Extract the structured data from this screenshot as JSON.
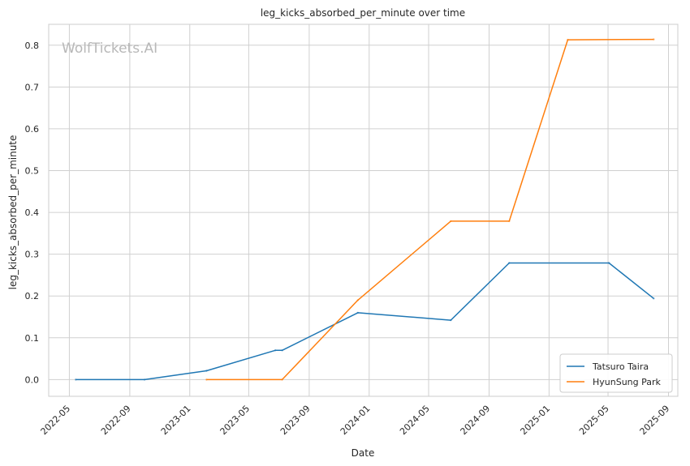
{
  "chart_data": {
    "type": "line",
    "title": "leg_kicks_absorbed_per_minute over time",
    "xlabel": "Date",
    "ylabel": "leg_kicks_absorbed_per_minute",
    "watermark": "WolfTickets.AI",
    "grid": true,
    "legend_position": "bottom-right",
    "x_ticks": [
      "2022-05",
      "2022-09",
      "2023-01",
      "2023-05",
      "2023-09",
      "2024-01",
      "2024-05",
      "2024-09",
      "2025-01",
      "2025-05",
      "2025-09"
    ],
    "y_ticks": [
      "0.0",
      "0.1",
      "0.2",
      "0.3",
      "0.4",
      "0.5",
      "0.6",
      "0.7",
      "0.8"
    ],
    "xlim": [
      "2022-03-20",
      "2025-09-20"
    ],
    "ylim": [
      -0.04,
      0.85
    ],
    "series": [
      {
        "name": "Tatsuro Taira",
        "color": "#1f77b4",
        "points": [
          {
            "x": "2022-05-14",
            "y": 0.0
          },
          {
            "x": "2022-10-01",
            "y": 0.0
          },
          {
            "x": "2023-02-04",
            "y": 0.021
          },
          {
            "x": "2023-06-24",
            "y": 0.07
          },
          {
            "x": "2023-07-08",
            "y": 0.07
          },
          {
            "x": "2023-12-09",
            "y": 0.16
          },
          {
            "x": "2024-06-15",
            "y": 0.142
          },
          {
            "x": "2024-10-12",
            "y": 0.279
          },
          {
            "x": "2025-05-03",
            "y": 0.279
          },
          {
            "x": "2025-08-02",
            "y": 0.194
          }
        ]
      },
      {
        "name": "HyunSung Park",
        "color": "#ff7f0e",
        "points": [
          {
            "x": "2023-02-04",
            "y": 0.0
          },
          {
            "x": "2023-07-08",
            "y": 0.0
          },
          {
            "x": "2023-12-09",
            "y": 0.19
          },
          {
            "x": "2024-06-15",
            "y": 0.379
          },
          {
            "x": "2024-10-12",
            "y": 0.379
          },
          {
            "x": "2025-02-08",
            "y": 0.813
          },
          {
            "x": "2025-08-02",
            "y": 0.814
          }
        ]
      }
    ]
  }
}
